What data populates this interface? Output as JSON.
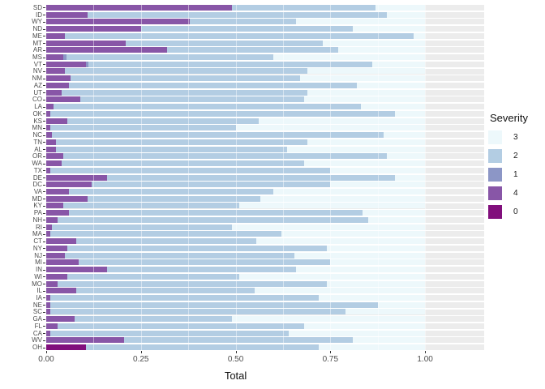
{
  "chart_data": {
    "type": "bar",
    "orientation": "horizontal",
    "stacked": true,
    "xlabel": "Total",
    "ylabel": "",
    "xlim": [
      0,
      1
    ],
    "xticks": [
      0,
      0.25,
      0.5,
      0.75,
      1
    ],
    "xtick_labels": [
      "0.00",
      "0.25",
      "0.50",
      "0.75",
      "1.00"
    ],
    "grid": "white-on-gray-panel",
    "legend": {
      "title": "Severity",
      "position": "right",
      "entries": [
        {
          "label": "3",
          "color": "#EDF8FB"
        },
        {
          "label": "2",
          "color": "#B3CDE3"
        },
        {
          "label": "1",
          "color": "#8C96C6"
        },
        {
          "label": "4",
          "color": "#8856A7"
        },
        {
          "label": "0",
          "color": "#810F7C"
        }
      ]
    },
    "stack_order_left_to_right": [
      "0",
      "4",
      "1",
      "2",
      "3"
    ],
    "categories": [
      "SD",
      "ID",
      "WY",
      "ND",
      "ME",
      "MT",
      "AR",
      "MS",
      "VT",
      "NV",
      "NM",
      "AZ",
      "UT",
      "CO",
      "LA",
      "OK",
      "KS",
      "MN",
      "NC",
      "TN",
      "AL",
      "OR",
      "WA",
      "TX",
      "DE",
      "DC",
      "VA",
      "MD",
      "KY",
      "PA",
      "NH",
      "RI",
      "MA",
      "CT",
      "NY",
      "NJ",
      "MI",
      "IN",
      "WI",
      "MO",
      "IL",
      "IA",
      "NE",
      "SC",
      "GA",
      "FL",
      "CA",
      "WV",
      "OH"
    ],
    "series": [
      {
        "name": "0",
        "color": "#810F7C",
        "values": [
          0,
          0,
          0,
          0,
          0,
          0,
          0,
          0,
          0,
          0,
          0,
          0,
          0,
          0,
          0,
          0,
          0,
          0,
          0,
          0,
          0,
          0,
          0,
          0,
          0,
          0,
          0,
          0,
          0,
          0,
          0,
          0,
          0,
          0,
          0,
          0,
          0,
          0,
          0,
          0,
          0,
          0,
          0,
          0,
          0,
          0,
          0,
          0,
          0.105
        ]
      },
      {
        "name": "4",
        "color": "#8856A7",
        "values": [
          0.49,
          0.11,
          0.38,
          0.25,
          0.05,
          0.21,
          0.32,
          0.045,
          0.105,
          0.05,
          0.065,
          0.06,
          0.04,
          0.09,
          0.02,
          0.01,
          0.055,
          0.01,
          0.015,
          0.025,
          0.025,
          0.045,
          0.04,
          0.01,
          0.16,
          0.12,
          0.06,
          0.11,
          0.045,
          0.06,
          0.03,
          0.015,
          0.01,
          0.08,
          0.055,
          0.05,
          0.085,
          0.16,
          0.055,
          0.03,
          0.08,
          0.01,
          0.01,
          0.01,
          0.075,
          0.03,
          0.01,
          0.205,
          0
        ]
      },
      {
        "name": "1",
        "color": "#8C96C6",
        "values": [
          0,
          0,
          0,
          0,
          0,
          0,
          0,
          0.008,
          0.006,
          0,
          0,
          0,
          0,
          0,
          0,
          0,
          0,
          0,
          0,
          0,
          0,
          0,
          0,
          0,
          0,
          0,
          0,
          0,
          0,
          0,
          0,
          0,
          0,
          0,
          0,
          0,
          0,
          0,
          0,
          0,
          0,
          0,
          0,
          0,
          0,
          0,
          0,
          0,
          0
        ]
      },
      {
        "name": "2",
        "color": "#B3CDE3",
        "values": [
          0.38,
          0.79,
          0.28,
          0.56,
          0.92,
          0.52,
          0.45,
          0.547,
          0.749,
          0.64,
          0.605,
          0.76,
          0.65,
          0.59,
          0.81,
          0.91,
          0.505,
          0.49,
          0.875,
          0.665,
          0.61,
          0.855,
          0.64,
          0.74,
          0.76,
          0.63,
          0.54,
          0.455,
          0.465,
          0.775,
          0.82,
          0.475,
          0.61,
          0.475,
          0.685,
          0.605,
          0.665,
          0.5,
          0.455,
          0.71,
          0.47,
          0.71,
          0.865,
          0.78,
          0.415,
          0.65,
          0.63,
          0.605,
          0.615
        ]
      },
      {
        "name": "3",
        "color": "#EDF8FB",
        "values": [
          0.13,
          0.1,
          0.34,
          0.19,
          0.03,
          0.27,
          0.23,
          0.4,
          0.14,
          0.31,
          0.33,
          0.18,
          0.31,
          0.32,
          0.17,
          0.08,
          0.44,
          0.5,
          0.11,
          0.31,
          0.365,
          0.1,
          0.32,
          0.25,
          0.08,
          0.25,
          0.4,
          0.435,
          0.49,
          0.165,
          0.15,
          0.51,
          0.38,
          0.445,
          0.26,
          0.345,
          0.25,
          0.34,
          0.49,
          0.26,
          0.45,
          0.28,
          0.125,
          0.21,
          0.51,
          0.32,
          0.36,
          0.19,
          0.28
        ]
      }
    ],
    "panel": {
      "background_color": "#ECECEC",
      "bar_area_fraction_of_panel": 0.865,
      "gray_overflow_strip": true
    }
  }
}
